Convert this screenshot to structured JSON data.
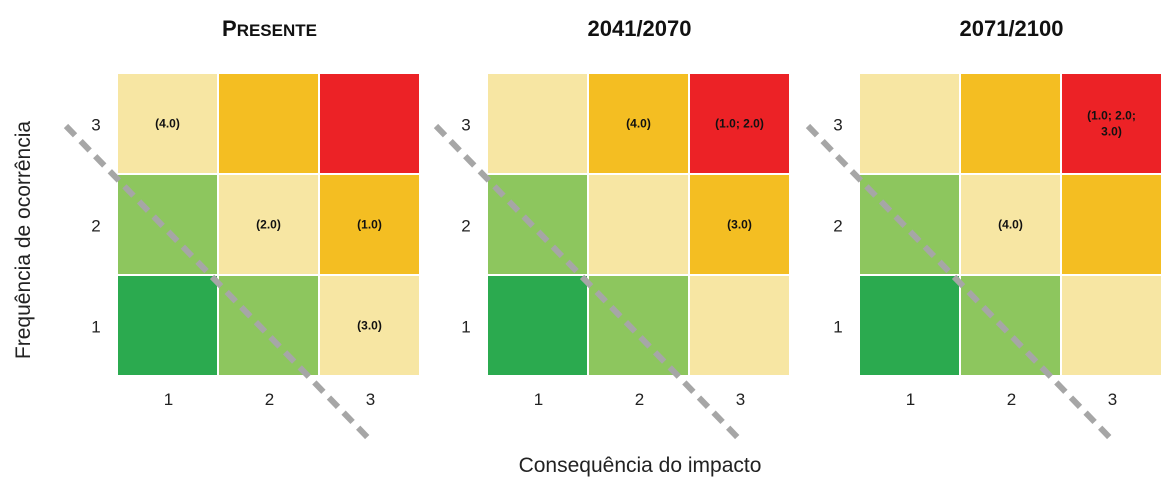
{
  "chart_data": {
    "type": "heatmap",
    "xlabel": "Consequência do impacto",
    "ylabel": "Frequência de ocorrência",
    "x_ticks": [
      "1",
      "2",
      "3"
    ],
    "y_ticks": [
      "1",
      "2",
      "3"
    ],
    "colors": {
      "dark_green": "#2BAA4F",
      "light_green": "#8DC65E",
      "light_yellow": "#F7E6A3",
      "orange": "#F4BE22",
      "red": "#EC2226",
      "diagonal": "#A6A6A6"
    },
    "risk_colors": [
      [
        "dark_green",
        "light_green",
        "light_yellow"
      ],
      [
        "light_green",
        "light_yellow",
        "orange"
      ],
      [
        "light_yellow",
        "orange",
        "red"
      ]
    ],
    "panels": [
      {
        "title": "PRESENTE",
        "labels": [
          {
            "x": 1,
            "y": 3,
            "lines": [
              "(4.0)"
            ]
          },
          {
            "x": 2,
            "y": 2,
            "lines": [
              "(2.0)"
            ]
          },
          {
            "x": 3,
            "y": 2,
            "lines": [
              "(1.0)"
            ]
          },
          {
            "x": 3,
            "y": 1,
            "lines": [
              "(3.0)"
            ]
          }
        ]
      },
      {
        "title": "2041/2070",
        "labels": [
          {
            "x": 2,
            "y": 3,
            "lines": [
              "(4.0)"
            ]
          },
          {
            "x": 3,
            "y": 3,
            "lines": [
              "(1.0; 2.0)"
            ]
          },
          {
            "x": 3,
            "y": 2,
            "lines": [
              "(3.0)"
            ]
          }
        ]
      },
      {
        "title": "2071/2100",
        "labels": [
          {
            "x": 3,
            "y": 3,
            "lines": [
              "(1.0; 2.0;",
              "3.0)"
            ]
          },
          {
            "x": 2,
            "y": 2,
            "lines": [
              "(4.0)"
            ]
          }
        ]
      }
    ]
  }
}
